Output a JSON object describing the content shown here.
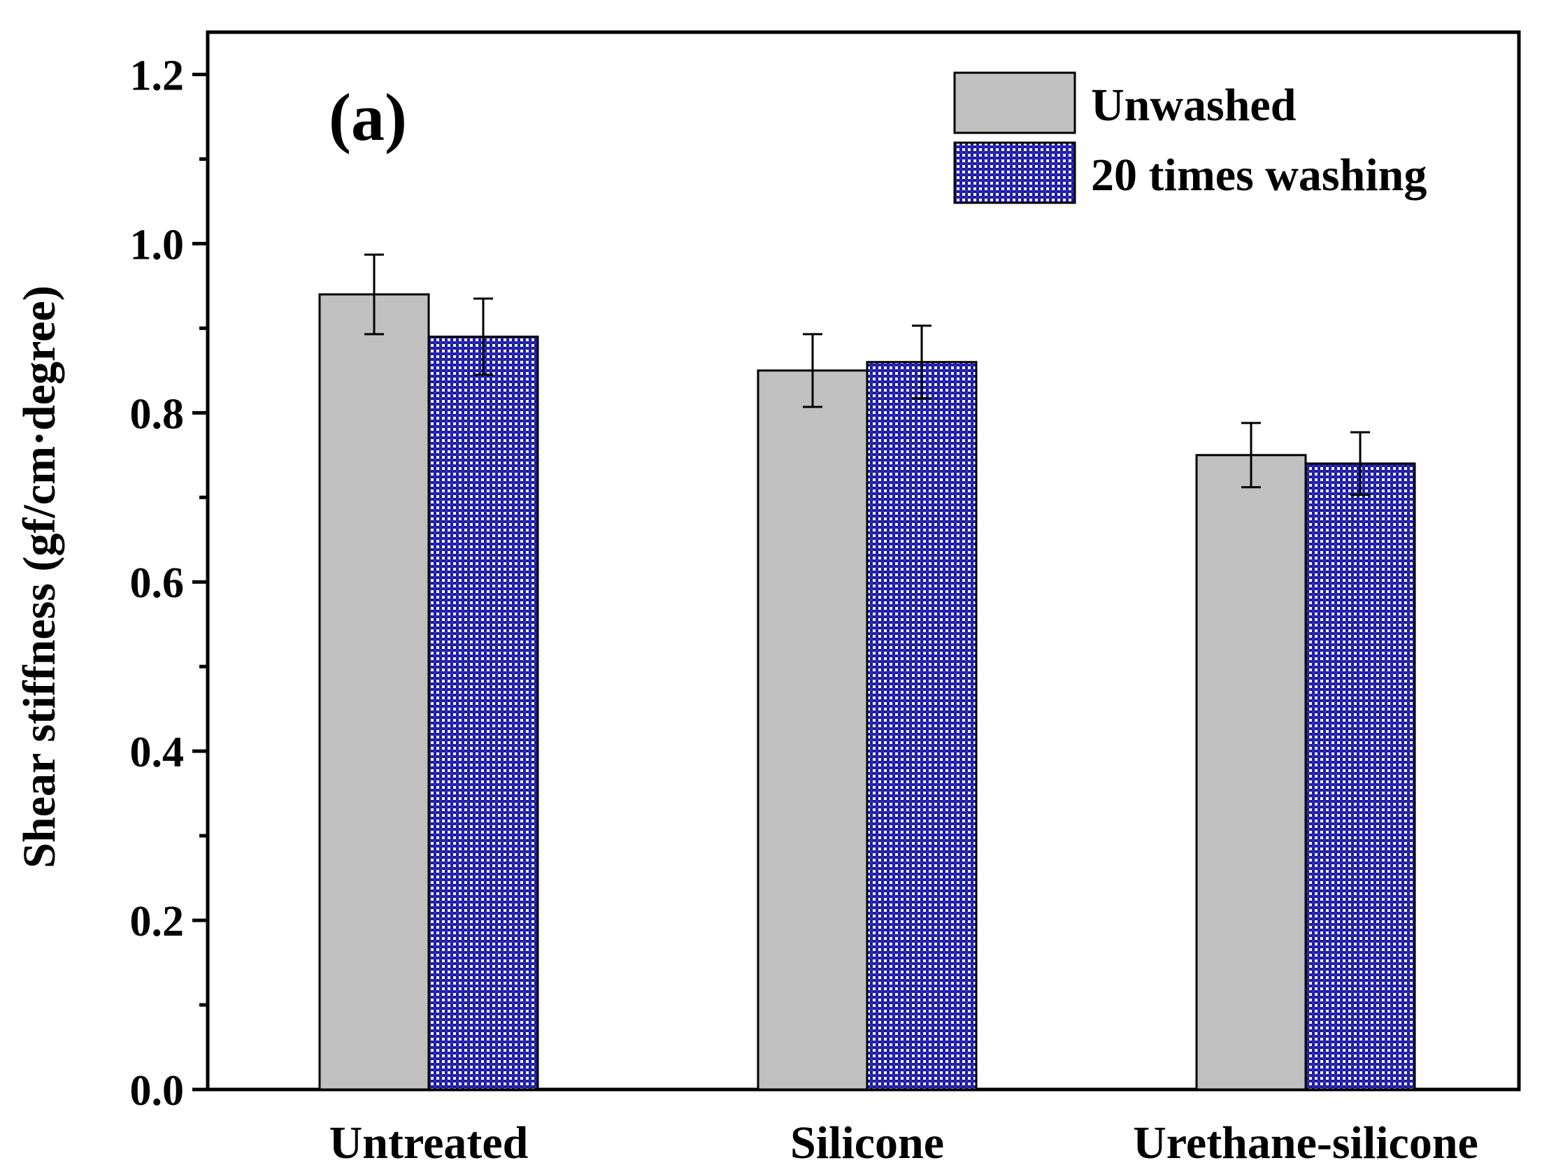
{
  "chart_data": {
    "type": "bar",
    "panel_label": "(a)",
    "title": "",
    "xlabel": "",
    "ylabel": "Shear stiffness (gf/cm·degree)",
    "categories": [
      "Untreated",
      "Silicone",
      "Urethane-silicone"
    ],
    "ylim": [
      0,
      1.25
    ],
    "yticks": [
      0.0,
      0.2,
      0.4,
      0.6,
      0.8,
      1.0,
      1.2
    ],
    "ytick_labels": [
      "0.0",
      "0.2",
      "0.4",
      "0.6",
      "0.8",
      "1.0",
      "1.2"
    ],
    "legend_position": "top-right",
    "series": [
      {
        "name": "Unwashed",
        "pattern": "solid",
        "color": "#c0c0c0",
        "values": [
          0.94,
          0.85,
          0.75
        ],
        "errors": [
          0.047,
          0.043,
          0.038
        ]
      },
      {
        "name": "20 times washing",
        "pattern": "checker",
        "color": "#1a1aa0",
        "values": [
          0.89,
          0.86,
          0.74
        ],
        "errors": [
          0.045,
          0.043,
          0.037
        ]
      }
    ]
  }
}
